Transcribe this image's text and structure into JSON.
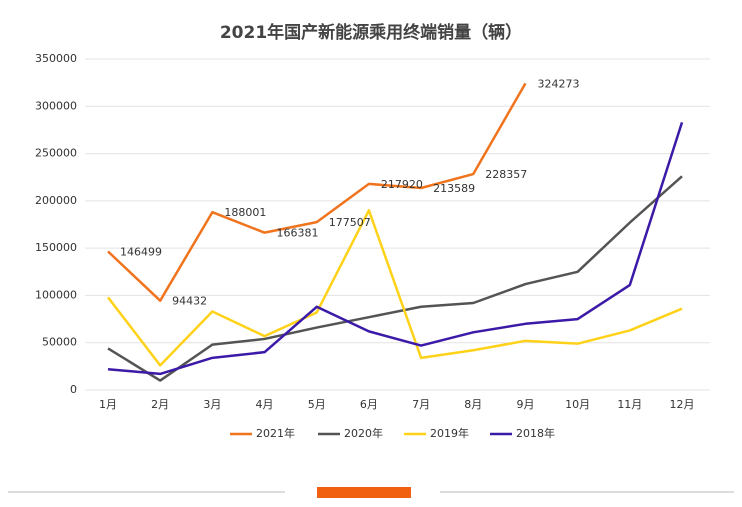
{
  "chart_data": {
    "type": "line",
    "title": "2021年国产新能源乘用终端销量（辆）",
    "categories": [
      "1月",
      "2月",
      "3月",
      "4月",
      "5月",
      "6月",
      "7月",
      "8月",
      "9月",
      "10月",
      "11月",
      "12月"
    ],
    "series": [
      {
        "name": "2021年",
        "color": "#f0741e",
        "values": [
          146499,
          94432,
          188001,
          166381,
          177507,
          217920,
          213589,
          228357,
          324273,
          null,
          null,
          null
        ]
      },
      {
        "name": "2020年",
        "color": "#545454",
        "values": [
          44000,
          10000,
          48000,
          54000,
          66000,
          77000,
          88000,
          92000,
          112000,
          125000,
          177000,
          226000
        ]
      },
      {
        "name": "2019年",
        "color": "#ffd21a",
        "values": [
          98000,
          26000,
          83000,
          57000,
          82000,
          190000,
          34000,
          42000,
          52000,
          49000,
          63000,
          86000
        ]
      },
      {
        "name": "2018年",
        "color": "#3b1aa8",
        "values": [
          22000,
          17000,
          34000,
          40000,
          88000,
          62000,
          47000,
          61000,
          70000,
          75000,
          111000,
          283000
        ]
      }
    ],
    "ylim": [
      0,
      350000
    ],
    "yticks": [
      0,
      50000,
      100000,
      150000,
      200000,
      250000,
      300000,
      350000
    ],
    "grid": true,
    "legend": "bottom",
    "data_labels_series": 0
  }
}
